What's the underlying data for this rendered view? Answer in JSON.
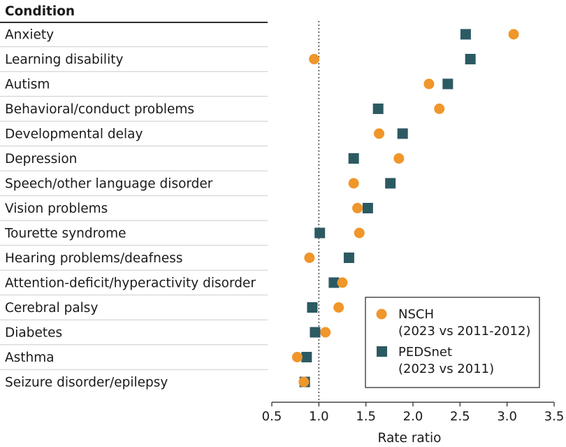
{
  "chart_data": {
    "type": "scatter",
    "column_header": "Condition",
    "xlabel": "Rate ratio",
    "xlim": [
      0.5,
      3.5
    ],
    "xticks": [
      "0.5",
      "1.0",
      "1.5",
      "2.0",
      "2.5",
      "3.0",
      "3.5"
    ],
    "tick_values": [
      0.5,
      1.0,
      1.5,
      2.0,
      2.5,
      3.0,
      3.5
    ],
    "reference_line": 1.0,
    "categories": [
      "Anxiety",
      "Learning disability",
      "Autism",
      "Behavioral/conduct problems",
      "Developmental delay",
      "Depression",
      "Speech/other language disorder",
      "Vision problems",
      "Tourette syndrome",
      "Hearing problems/deafness",
      "Attention-deficit/hyperactivity disorder",
      "Cerebral palsy",
      "Diabetes",
      "Asthma",
      "Seizure disorder/epilepsy"
    ],
    "series": [
      {
        "name": "NSCH",
        "legend_line1": "NSCH",
        "legend_line2": "(2023 vs 2011-2012)",
        "marker": "circle",
        "color": "#f0962a",
        "values": [
          3.07,
          0.95,
          2.17,
          2.28,
          1.64,
          1.85,
          1.37,
          1.41,
          1.43,
          0.9,
          1.25,
          1.21,
          1.07,
          0.77,
          0.84
        ]
      },
      {
        "name": "PEDSnet",
        "legend_line1": "PEDSnet",
        "legend_line2": "(2023 vs 2011)",
        "marker": "square",
        "color": "#2c5a63",
        "values": [
          2.56,
          2.61,
          2.37,
          1.63,
          1.89,
          1.37,
          1.76,
          1.52,
          1.01,
          1.32,
          1.16,
          0.93,
          0.96,
          0.87,
          0.85
        ]
      }
    ]
  }
}
